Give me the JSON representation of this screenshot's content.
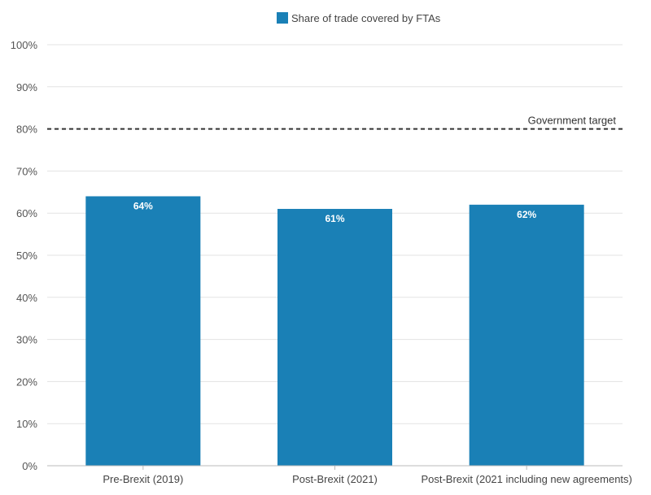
{
  "chart_data": {
    "type": "bar",
    "categories": [
      "Pre-Brexit (2019)",
      "Post-Brexit (2021)",
      "Post-Brexit (2021 including new agreements)"
    ],
    "series": [
      {
        "name": "Share of trade covered by FTAs",
        "values": [
          64,
          61,
          62
        ],
        "color": "#1a80b6"
      }
    ],
    "data_labels": [
      "64%",
      "61%",
      "62%"
    ],
    "ylim": [
      0,
      100
    ],
    "yticks": [
      0,
      10,
      20,
      30,
      40,
      50,
      60,
      70,
      80,
      90,
      100
    ],
    "ytick_labels": [
      "0%",
      "10%",
      "20%",
      "30%",
      "40%",
      "50%",
      "60%",
      "70%",
      "80%",
      "90%",
      "100%"
    ],
    "reference_line": {
      "value": 80,
      "label": "Government target",
      "style": "dashed",
      "color": "#333333"
    },
    "legend": {
      "position": "top-center"
    },
    "grid": true,
    "title": "",
    "xlabel": "",
    "ylabel": ""
  }
}
